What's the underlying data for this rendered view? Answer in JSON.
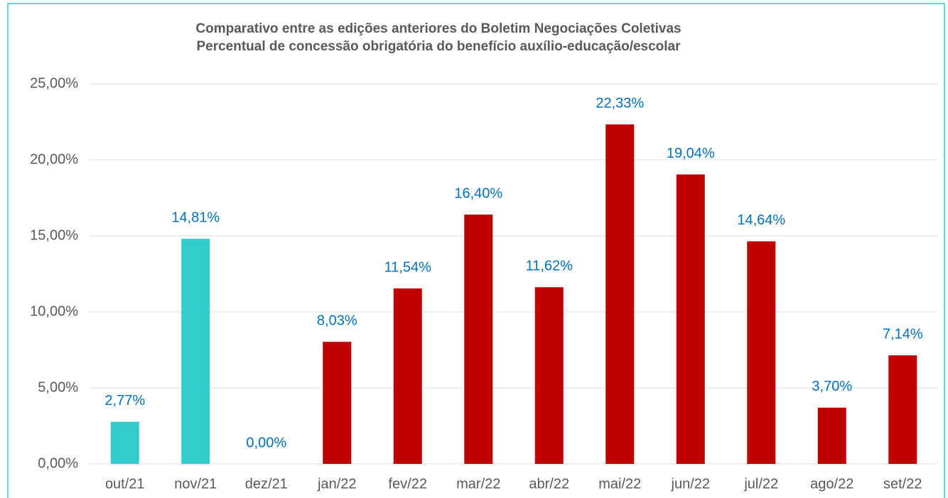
{
  "chart_data": {
    "type": "bar",
    "title": "Comparativo entre as edições anteriores do Boletim Negociações Coletivas",
    "subtitle": "Percentual de concessão obrigatória do benefício auxílio-educação/escolar",
    "categories": [
      "out/21",
      "nov/21",
      "dez/21",
      "jan/22",
      "fev/22",
      "mar/22",
      "abr/22",
      "mai/22",
      "jun/22",
      "jul/22",
      "ago/22",
      "set/22"
    ],
    "values": [
      2.77,
      14.81,
      0,
      8.03,
      11.54,
      16.4,
      11.62,
      22.33,
      19.04,
      14.64,
      3.7,
      7.14
    ],
    "value_labels": [
      "2,77%",
      "14,81%",
      "0,00%",
      "8,03%",
      "11,54%",
      "16,40%",
      "11,62%",
      "22,33%",
      "19,04%",
      "14,64%",
      "3,70%",
      "7,14%"
    ],
    "colors": [
      "#33cccc",
      "#33cccc",
      "#33cccc",
      "#c00000",
      "#c00000",
      "#c00000",
      "#c00000",
      "#c00000",
      "#c00000",
      "#c00000",
      "#c00000",
      "#c00000"
    ],
    "ylim": [
      0,
      25
    ],
    "yticks": [
      {
        "value": 0,
        "label": "0,00%"
      },
      {
        "value": 5,
        "label": "5,00%"
      },
      {
        "value": 10,
        "label": "10,00%"
      },
      {
        "value": 15,
        "label": "15,00%"
      },
      {
        "value": 20,
        "label": "20,00%"
      },
      {
        "value": 25,
        "label": "25,00%"
      }
    ],
    "grid": true
  }
}
